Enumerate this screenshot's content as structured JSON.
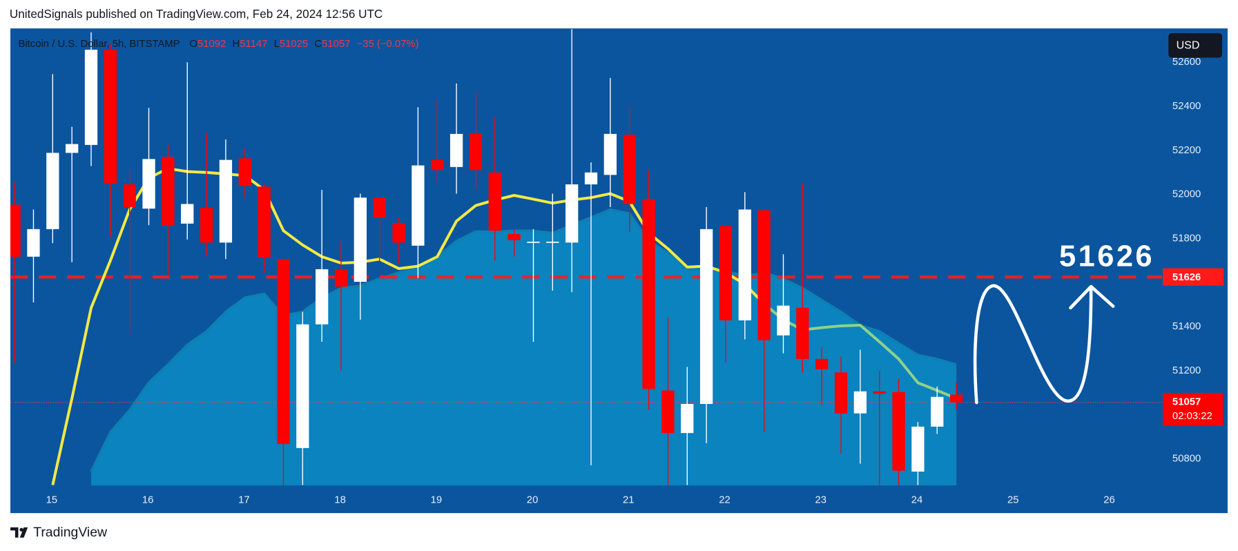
{
  "header": "UnitedSignals published on TradingView.com, Feb 24, 2024 12:56 UTC",
  "footer": "TradingView",
  "chart_data": {
    "type": "candlestick",
    "legend": {
      "symbol": "Bitcoin / U.S. Dollar, 5h, BITSTAMP",
      "fields": [
        {
          "key": "O",
          "value": 51092
        },
        {
          "key": "H",
          "value": 51147
        },
        {
          "key": "L",
          "value": 51025
        },
        {
          "key": "C",
          "value": 51057
        }
      ],
      "change": "−35 (−0.07%)"
    },
    "currency_button": "USD",
    "up_color": "#ffffff",
    "down_color": "#ff0000",
    "x": [
      14.61,
      14.81,
      15.01,
      15.21,
      15.41,
      15.61,
      15.81,
      16.01,
      16.21,
      16.41,
      16.61,
      16.81,
      17.01,
      17.21,
      17.41,
      17.61,
      17.81,
      18.01,
      18.21,
      18.41,
      18.61,
      18.81,
      19.01,
      19.21,
      19.41,
      19.61,
      19.81,
      20.01,
      20.21,
      20.41,
      20.61,
      20.81,
      21.01,
      21.21,
      21.41,
      21.61,
      21.81,
      22.01,
      22.21,
      22.41,
      22.61,
      22.81,
      23.01,
      23.21,
      23.41,
      23.61,
      23.81,
      24.01,
      24.21,
      24.41
    ],
    "candles": {
      "open": [
        51954,
        51718,
        51843,
        52189,
        52225,
        52657,
        52046,
        51936,
        52171,
        51868,
        51939,
        51782,
        52164,
        52036,
        51707,
        50850,
        51411,
        51661,
        51604,
        51986,
        51871,
        51768,
        52157,
        52125,
        52275,
        52100,
        51821,
        51782,
        51782,
        51782,
        52046,
        52089,
        52271,
        51979,
        51111,
        50918,
        51050,
        51857,
        51429,
        51929,
        51361,
        51486,
        51254,
        51193,
        51007,
        51107,
        51104,
        50743,
        50947,
        51092
      ],
      "high": [
        52057,
        51932,
        52546,
        52307,
        52736,
        52682,
        52111,
        52393,
        52225,
        52600,
        52279,
        52250,
        52211,
        52046,
        51707,
        51468,
        52021,
        51789,
        52004,
        51986,
        51896,
        52396,
        52432,
        52504,
        52468,
        52350,
        51843,
        51843,
        52004,
        52754,
        52146,
        52529,
        52396,
        52111,
        51443,
        51218,
        51943,
        51857,
        52011,
        51929,
        51729,
        52050,
        51307,
        51264,
        51296,
        51200,
        51164,
        50968,
        51129,
        51147
      ],
      "low": [
        51236,
        51511,
        51779,
        51693,
        52129,
        51807,
        51368,
        51861,
        51629,
        51796,
        51718,
        51707,
        51986,
        51646,
        50682,
        50682,
        51332,
        51200,
        51432,
        51700,
        51682,
        51621,
        52057,
        52004,
        52021,
        51700,
        51718,
        51332,
        51564,
        51557,
        50772,
        51943,
        51832,
        51022,
        50682,
        50682,
        50872,
        51236,
        51343,
        50922,
        51279,
        51193,
        51047,
        50825,
        50779,
        50682,
        50682,
        50682,
        50914,
        51025
      ],
      "close": [
        51718,
        51843,
        52189,
        52229,
        52657,
        52050,
        51943,
        52161,
        51861,
        51957,
        51782,
        52157,
        52039,
        51714,
        50868,
        51411,
        51661,
        51582,
        51986,
        51896,
        51782,
        52132,
        52111,
        52275,
        52111,
        51836,
        51793,
        51786,
        51786,
        52046,
        52100,
        52275,
        51957,
        51118,
        50918,
        51050,
        51843,
        51429,
        51932,
        51339,
        51496,
        51254,
        51207,
        51007,
        51107,
        51096,
        50747,
        50947,
        51082,
        51057
      ]
    },
    "lines": [
      {
        "color": "#f5e942",
        "values": [
          null,
          null,
          50682,
          51075,
          51486,
          51700,
          51932,
          52075,
          52118,
          52104,
          52100,
          52093,
          52086,
          52021,
          51836,
          51771,
          51718,
          51689,
          51693,
          51707,
          51664,
          51675,
          51718,
          51879,
          51950,
          51975,
          51996,
          51979,
          51961,
          51975,
          51986,
          52004,
          51968,
          51825,
          51754,
          51671,
          51675,
          51646,
          51593,
          51504,
          null,
          null,
          null,
          null,
          null,
          null,
          null,
          null,
          null,
          null
        ]
      },
      {
        "color": "#8fd18a",
        "values": [
          null,
          null,
          null,
          null,
          null,
          null,
          null,
          null,
          null,
          null,
          null,
          null,
          null,
          null,
          null,
          null,
          null,
          null,
          null,
          null,
          null,
          null,
          null,
          null,
          null,
          null,
          null,
          null,
          null,
          null,
          null,
          null,
          null,
          null,
          null,
          null,
          null,
          null,
          null,
          51504,
          51432,
          51386,
          51396,
          51404,
          51407,
          51332,
          51254,
          51146,
          51111,
          51075
        ]
      }
    ],
    "area": {
      "color": "#0a8cc4",
      "values": [
        null,
        null,
        null,
        null,
        50743,
        50922,
        51022,
        51147,
        51229,
        51318,
        51379,
        51468,
        51532,
        51550,
        51450,
        51468,
        51532,
        51575,
        51586,
        51618,
        51646,
        51671,
        51718,
        51789,
        51832,
        51832,
        51836,
        51836,
        51825,
        51861,
        51896,
        51932,
        51914,
        51789,
        51736,
        51664,
        51657,
        51654,
        51629,
        51646,
        51618,
        51575,
        51521,
        51468,
        51407,
        51379,
        51325,
        51272,
        51254,
        51229
      ]
    },
    "level": {
      "value": 51626,
      "color": "#ff1a1a"
    },
    "last_price": {
      "value": 51057,
      "countdown": "02:03:22"
    },
    "xlim": [
      14.57,
      26.55
    ],
    "xticks": [
      15,
      16,
      17,
      18,
      19,
      20,
      21,
      22,
      23,
      24,
      25,
      26
    ],
    "ylim": [
      50680,
      52750
    ],
    "yticks": [
      50800,
      51200,
      51400,
      51800,
      52000,
      52200,
      52400,
      52600
    ]
  }
}
